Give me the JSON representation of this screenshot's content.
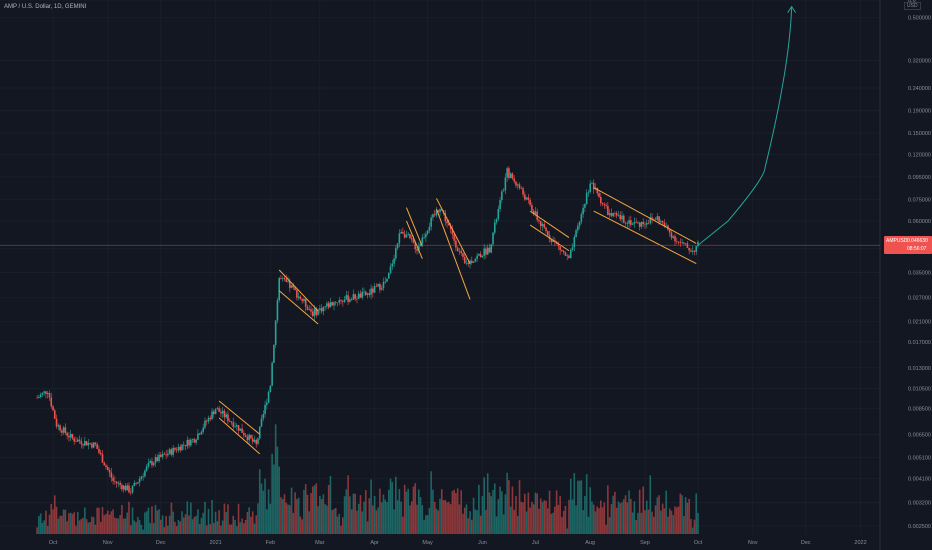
{
  "header": {
    "title": "AMP / U.S. Dollar, 1D, GEMINI"
  },
  "top_badge": "USD",
  "price_tag": {
    "symbol": "AMPUSD",
    "price": "0.046630",
    "countdown": "08:56:07"
  },
  "colors": {
    "background": "#131722",
    "up": "#26a69a",
    "down": "#ef5350",
    "channel": "#f7a541",
    "arrow": "#26a69a",
    "price_line": "#ef5350"
  },
  "chart_data": {
    "type": "candlestick",
    "x_ticks": [
      "Oct",
      "Nov",
      "Dec",
      "2021",
      "Feb",
      "Mar",
      "Apr",
      "May",
      "Jun",
      "Jul",
      "Aug",
      "Sep",
      "Oct",
      "Nov",
      "Dec",
      "2022"
    ],
    "y_scale": "log",
    "y_ticks": [
      "0.6",
      "0.500000",
      "0.320000",
      "0.240000",
      "0.190000",
      "0.150000",
      "0.120000",
      "0.095000",
      "0.075000",
      "0.060000",
      "0.045000",
      "0.035000",
      "0.027000",
      "0.021000",
      "0.017000",
      "0.013000",
      "0.010500",
      "0.008500",
      "0.006500",
      "0.005100",
      "0.004100",
      "0.003200",
      "0.002500"
    ],
    "ylim": [
      0.0023,
      0.6
    ],
    "last_price": 0.04663,
    "price_path": [
      [
        "Sep 22 2020",
        0.0095
      ],
      [
        "Sep 28 2020",
        0.0103
      ],
      [
        "Oct 3 2020",
        0.0072
      ],
      [
        "Oct 12 2020",
        0.0062
      ],
      [
        "Oct 25 2020",
        0.0058
      ],
      [
        "Nov 4 2020",
        0.004
      ],
      [
        "Nov 14 2020",
        0.0036
      ],
      [
        "Nov 25 2020",
        0.0048
      ],
      [
        "Dec 8 2020",
        0.0055
      ],
      [
        "Dec 20 2020",
        0.0062
      ],
      [
        "Jan 1 2021",
        0.0085
      ],
      [
        "Jan 12 2021",
        0.0072
      ],
      [
        "Jan 24 2021",
        0.0058
      ],
      [
        "Feb 1 2021",
        0.011
      ],
      [
        "Feb 6 2021",
        0.033
      ],
      [
        "Feb 13 2021",
        0.03
      ],
      [
        "Feb 25 2021",
        0.023
      ],
      [
        "Mar 10 2021",
        0.026
      ],
      [
        "Mar 28 2021",
        0.028
      ],
      [
        "Apr 8 2021",
        0.032
      ],
      [
        "Apr 16 2021",
        0.055
      ],
      [
        "Apr 25 2021",
        0.045
      ],
      [
        "May 3 2021",
        0.06
      ],
      [
        "May 8 2021",
        0.07
      ],
      [
        "May 22 2021",
        0.038
      ],
      [
        "Jun 5 2021",
        0.045
      ],
      [
        "Jun 15 2021",
        0.1
      ],
      [
        "Jun 22 2021",
        0.085
      ],
      [
        "Jul 5 2021",
        0.056
      ],
      [
        "Jul 20 2021",
        0.04
      ],
      [
        "Aug 1 2021",
        0.09
      ],
      [
        "Aug 12 2021",
        0.064
      ],
      [
        "Aug 28 2021",
        0.058
      ],
      [
        "Sep 8 2021",
        0.062
      ],
      [
        "Sep 20 2021",
        0.048
      ],
      [
        "Sep 28 2021",
        0.044
      ],
      [
        "Oct 1 2021",
        0.0466
      ]
    ],
    "projection": [
      [
        "Oct 1 2021",
        0.0466
      ],
      [
        "Oct 18 2021",
        0.06
      ],
      [
        "Nov 8 2021",
        0.105
      ],
      [
        "Nov 23 2021",
        0.56
      ]
    ],
    "channels": [
      {
        "start": "Jan 3 2021",
        "end": "Jan 26 2021",
        "upper": [
          0.0092,
          0.0065
        ],
        "lower": [
          0.0077,
          0.0053
        ]
      },
      {
        "start": "Feb 6 2021",
        "end": "Feb 28 2021",
        "upper": [
          0.036,
          0.0235
        ],
        "lower": [
          0.029,
          0.0205
        ]
      },
      {
        "start": "Apr 19 2021",
        "end": "Apr 28 2021",
        "upper": [
          0.069,
          0.046
        ],
        "lower": [
          0.06,
          0.0405
        ]
      },
      {
        "start": "May 6 2021",
        "end": "May 25 2021",
        "upper": [
          0.076,
          0.0385
        ],
        "lower": [
          0.068,
          0.0265
        ]
      },
      {
        "start": "Jun 28 2021",
        "end": "Jul 20 2021",
        "upper": [
          0.0665,
          0.0505
        ],
        "lower": [
          0.0575,
          0.044
        ]
      },
      {
        "start": "Aug 3 2021",
        "end": "Sep 30 2021",
        "upper": [
          0.085,
          0.0475
        ],
        "lower": [
          0.0665,
          0.0385
        ]
      }
    ]
  }
}
